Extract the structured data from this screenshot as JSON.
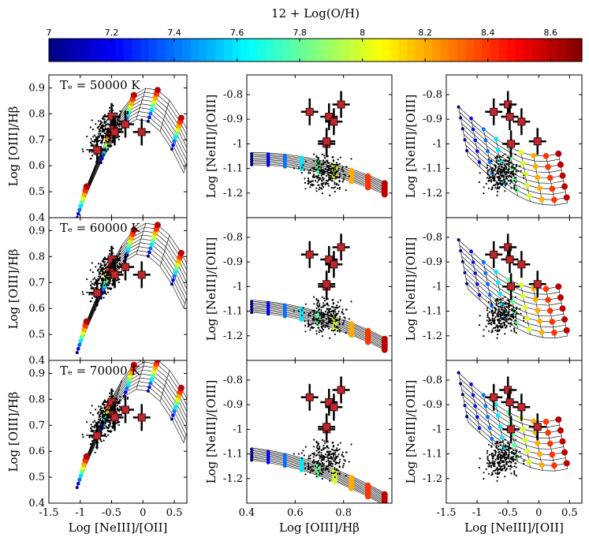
{
  "chart_data": {
    "type": "scatter",
    "colorbar": {
      "label": "12 + Log(O/H)",
      "ticks": [
        "7",
        "7.2",
        "7.4",
        "7.6",
        "7.8",
        "8",
        "8.2",
        "8.4",
        "8.6"
      ],
      "range": [
        7.0,
        8.7
      ],
      "colormap": "jet"
    },
    "row_labels": [
      "Tₑ = 50000 K",
      "Tₑ = 60000 K",
      "Tₑ = 70000 K"
    ],
    "axis_labels": {
      "log_ne3_o2": "Log [NeIII]/[OII]",
      "log_o3_hb": "Log [OIII]/Hβ",
      "log_ne3_o3": "Log [NeIII]/[OIII]"
    },
    "columns": [
      {
        "x_quantity": "Log [NeIII]/[OII]",
        "y_quantity": "Log [OIII]/Hβ",
        "xlim": [
          -1.5,
          0.7
        ],
        "ylim": [
          0.4,
          0.95
        ],
        "xticks": [
          "-1.5",
          "-1",
          "-0.5",
          "0",
          "0.5"
        ],
        "yticks": [
          "0.4",
          "0.5",
          "0.6",
          "0.7",
          "0.8",
          "0.9"
        ]
      },
      {
        "x_quantity": "Log [OIII]/Hβ",
        "y_quantity": "Log [NeIII]/[OIII]",
        "xlim": [
          0.4,
          1.0
        ],
        "ylim": [
          -1.3,
          -0.72
        ],
        "xticks": [
          "0.4",
          "0.6",
          "0.8"
        ],
        "yticks": [
          "-1.2",
          "-1.1",
          "-1",
          "-0.9",
          "-0.8"
        ]
      },
      {
        "x_quantity": "Log [NeIII]/[OII]",
        "y_quantity": "Log [NeIII]/[OIII]",
        "xlim": [
          -1.5,
          0.7
        ],
        "ylim": [
          -1.3,
          -0.72
        ],
        "xticks": [
          "-1.5",
          "-1",
          "-0.5",
          "0",
          "0.5"
        ],
        "yticks": [
          "-1.2",
          "-1.1",
          "-1",
          "-0.9",
          "-0.8"
        ]
      }
    ],
    "observed_points": [
      {
        "ne3_o2": -0.73,
        "o3_hb": 0.66,
        "ne3_o3": -0.87
      },
      {
        "ne3_o2": -0.5,
        "o3_hb": 0.79,
        "ne3_o3": -0.84
      },
      {
        "ne3_o2": -0.47,
        "o3_hb": 0.74,
        "ne3_o3": -0.89
      },
      {
        "ne3_o2": -0.28,
        "o3_hb": 0.76,
        "ne3_o3": -0.91
      },
      {
        "ne3_o2": -0.45,
        "o3_hb": 0.73,
        "ne3_o3": -1.0
      },
      {
        "ne3_o2": -0.02,
        "o3_hb": 0.73,
        "ne3_o3": -0.99
      }
    ],
    "model_grid": {
      "metallicity_values": [
        7.0,
        7.2,
        7.4,
        7.6,
        7.8,
        8.0,
        8.2,
        8.4,
        8.6
      ],
      "ionization_tracks": 10
    }
  }
}
